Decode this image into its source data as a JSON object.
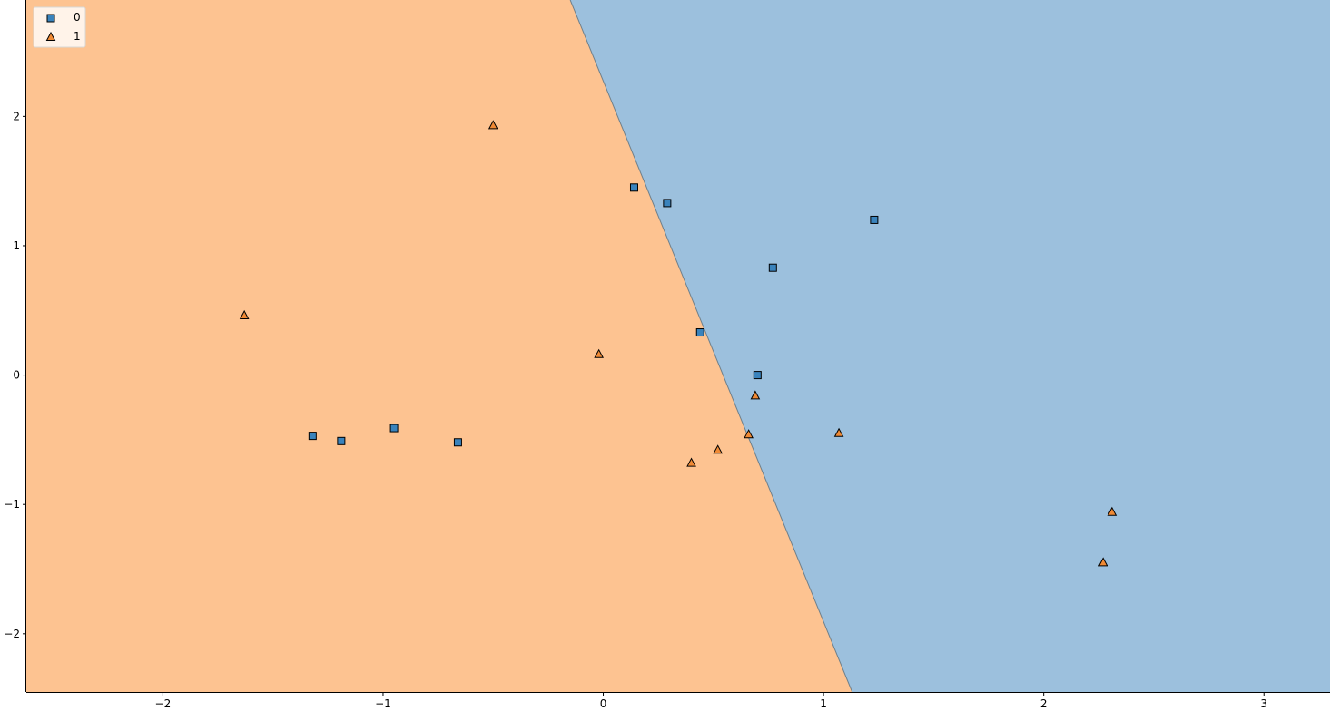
{
  "chart_data": {
    "type": "scatter",
    "title": "",
    "xlabel": "",
    "ylabel": "",
    "xlim": [
      -2.62,
      3.3
    ],
    "ylim": [
      -2.45,
      2.9
    ],
    "grid": false,
    "legend_placement": "top-left",
    "x_ticks": [
      -2,
      -1,
      0,
      1,
      2,
      3
    ],
    "y_ticks": [
      -2,
      -1,
      0,
      1,
      2
    ],
    "x_tick_labels": [
      "−2",
      "−1",
      "0",
      "1",
      "2",
      "3"
    ],
    "y_tick_labels": [
      "−2",
      "−1",
      "0",
      "1",
      "2"
    ],
    "decision_regions": {
      "boundary_line": [
        [
          -0.15,
          2.9
        ],
        [
          1.13,
          -2.45
        ]
      ],
      "left_class": "1",
      "right_class": "0",
      "colors": {
        "0": "#9cc0dd",
        "1": "#fdc391"
      }
    },
    "series": [
      {
        "name": "0",
        "marker": "square",
        "color": "#3a83bc",
        "points": [
          [
            0.14,
            1.45
          ],
          [
            0.29,
            1.33
          ],
          [
            1.23,
            1.2
          ],
          [
            0.77,
            0.83
          ],
          [
            0.44,
            0.33
          ],
          [
            0.7,
            0.0
          ],
          [
            -1.32,
            -0.47
          ],
          [
            -1.19,
            -0.51
          ],
          [
            -0.95,
            -0.41
          ],
          [
            -0.66,
            -0.52
          ]
        ]
      },
      {
        "name": "1",
        "marker": "triangle",
        "color": "#f08a35",
        "points": [
          [
            -0.5,
            1.93
          ],
          [
            -1.63,
            0.46
          ],
          [
            -0.02,
            0.16
          ],
          [
            0.69,
            -0.16
          ],
          [
            0.66,
            -0.46
          ],
          [
            1.07,
            -0.45
          ],
          [
            0.52,
            -0.58
          ],
          [
            0.4,
            -0.68
          ],
          [
            2.31,
            -1.06
          ],
          [
            2.27,
            -1.45
          ]
        ]
      }
    ]
  }
}
